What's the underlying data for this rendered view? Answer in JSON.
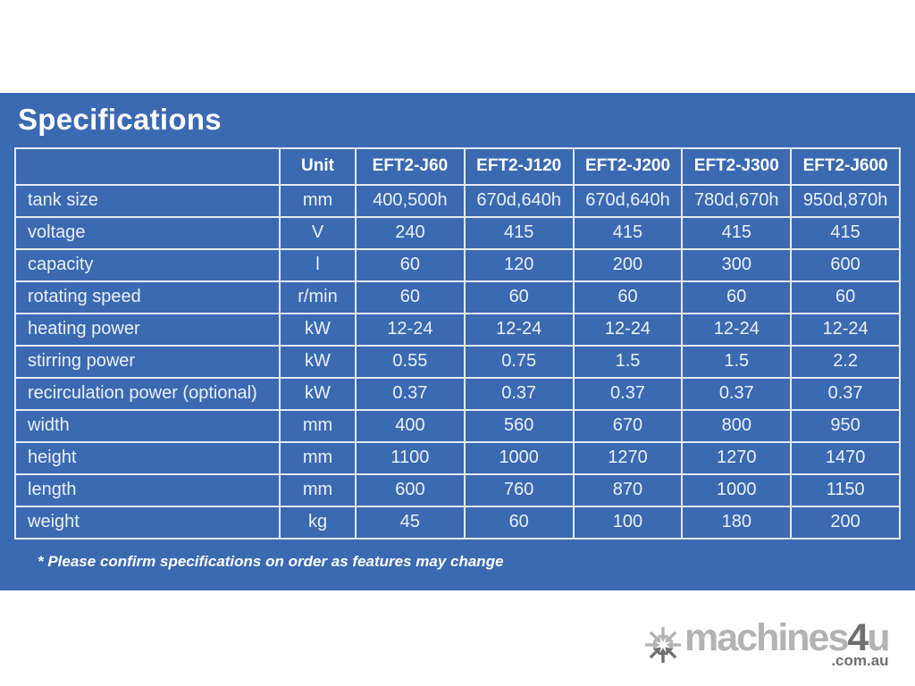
{
  "panel": {
    "title": "Specifications",
    "footnote": "* Please confirm specifications on order as features may change",
    "background_color": "#3b69b2",
    "border_color": "#e4ebf4",
    "text_color": "#ffffff"
  },
  "table": {
    "columns": [
      "",
      "Unit",
      "EFT2-J60",
      "EFT2-J120",
      "EFT2-J200",
      "EFT2-J300",
      "EFT2-J600"
    ],
    "rows": [
      {
        "label": "tank size",
        "unit": "mm",
        "values": [
          "400,500h",
          "670d,640h",
          "670d,640h",
          "780d,670h",
          "950d,870h"
        ]
      },
      {
        "label": "voltage",
        "unit": "V",
        "values": [
          "240",
          "415",
          "415",
          "415",
          "415"
        ]
      },
      {
        "label": "capacity",
        "unit": "l",
        "values": [
          "60",
          "120",
          "200",
          "300",
          "600"
        ]
      },
      {
        "label": "rotating speed",
        "unit": "r/min",
        "values": [
          "60",
          "60",
          "60",
          "60",
          "60"
        ]
      },
      {
        "label": "heating power",
        "unit": "kW",
        "values": [
          "12-24",
          "12-24",
          "12-24",
          "12-24",
          "12-24"
        ]
      },
      {
        "label": "stirring power",
        "unit": "kW",
        "values": [
          "0.55",
          "0.75",
          "1.5",
          "1.5",
          "2.2"
        ]
      },
      {
        "label": "recirculation power (optional)",
        "unit": "kW",
        "values": [
          "0.37",
          "0.37",
          "0.37",
          "0.37",
          "0.37"
        ]
      },
      {
        "label": "width",
        "unit": "mm",
        "values": [
          "400",
          "560",
          "670",
          "800",
          "950"
        ]
      },
      {
        "label": "height",
        "unit": "mm",
        "values": [
          "1100",
          "1000",
          "1270",
          "1270",
          "1470"
        ]
      },
      {
        "label": "length",
        "unit": "mm",
        "values": [
          "600",
          "760",
          "870",
          "1000",
          "1150"
        ]
      },
      {
        "label": "weight",
        "unit": "kg",
        "values": [
          "45",
          "60",
          "100",
          "180",
          "200"
        ]
      }
    ]
  },
  "logo": {
    "wordmark_light": "machines",
    "wordmark_accent": "4",
    "wordmark_tail": "u",
    "domain": ".com.au",
    "icon": "snowflake-arrows-icon",
    "color_light": "#b3b3b3",
    "color_dark": "#6f6f6f"
  }
}
